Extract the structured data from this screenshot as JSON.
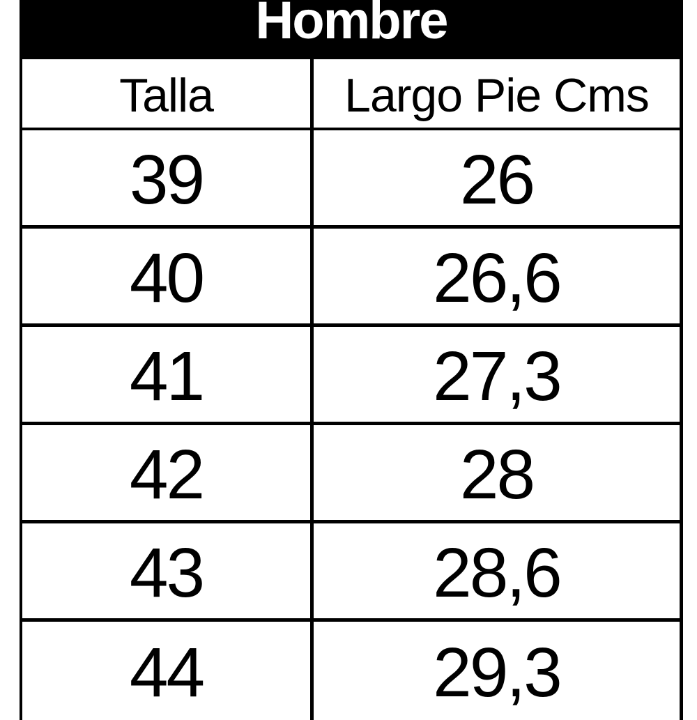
{
  "table": {
    "title": "Hombre",
    "columns": [
      "Talla",
      "Largo Pie Cms"
    ],
    "rows": [
      {
        "talla": "39",
        "largo": "26"
      },
      {
        "talla": "40",
        "largo": "26,6"
      },
      {
        "talla": "41",
        "largo": "27,3"
      },
      {
        "talla": "42",
        "largo": "28"
      },
      {
        "talla": "43",
        "largo": "28,6"
      },
      {
        "talla": "44",
        "largo": "29,3"
      }
    ],
    "colors": {
      "title_bg": "#000000",
      "title_text": "#ffffff",
      "border": "#000000",
      "cell_bg": "#ffffff",
      "cell_text": "#000000"
    }
  },
  "chart_data": {
    "type": "table",
    "title": "Hombre",
    "columns": [
      "Talla",
      "Largo Pie Cms"
    ],
    "rows": [
      [
        "39",
        "26"
      ],
      [
        "40",
        "26,6"
      ],
      [
        "41",
        "27,3"
      ],
      [
        "42",
        "28"
      ],
      [
        "43",
        "28,6"
      ],
      [
        "44",
        "29,3"
      ]
    ],
    "notes": "Men's shoe size chart: European size (Talla) vs foot length in centimeters; decimal comma notation; last row partially clipped at bottom of image"
  }
}
